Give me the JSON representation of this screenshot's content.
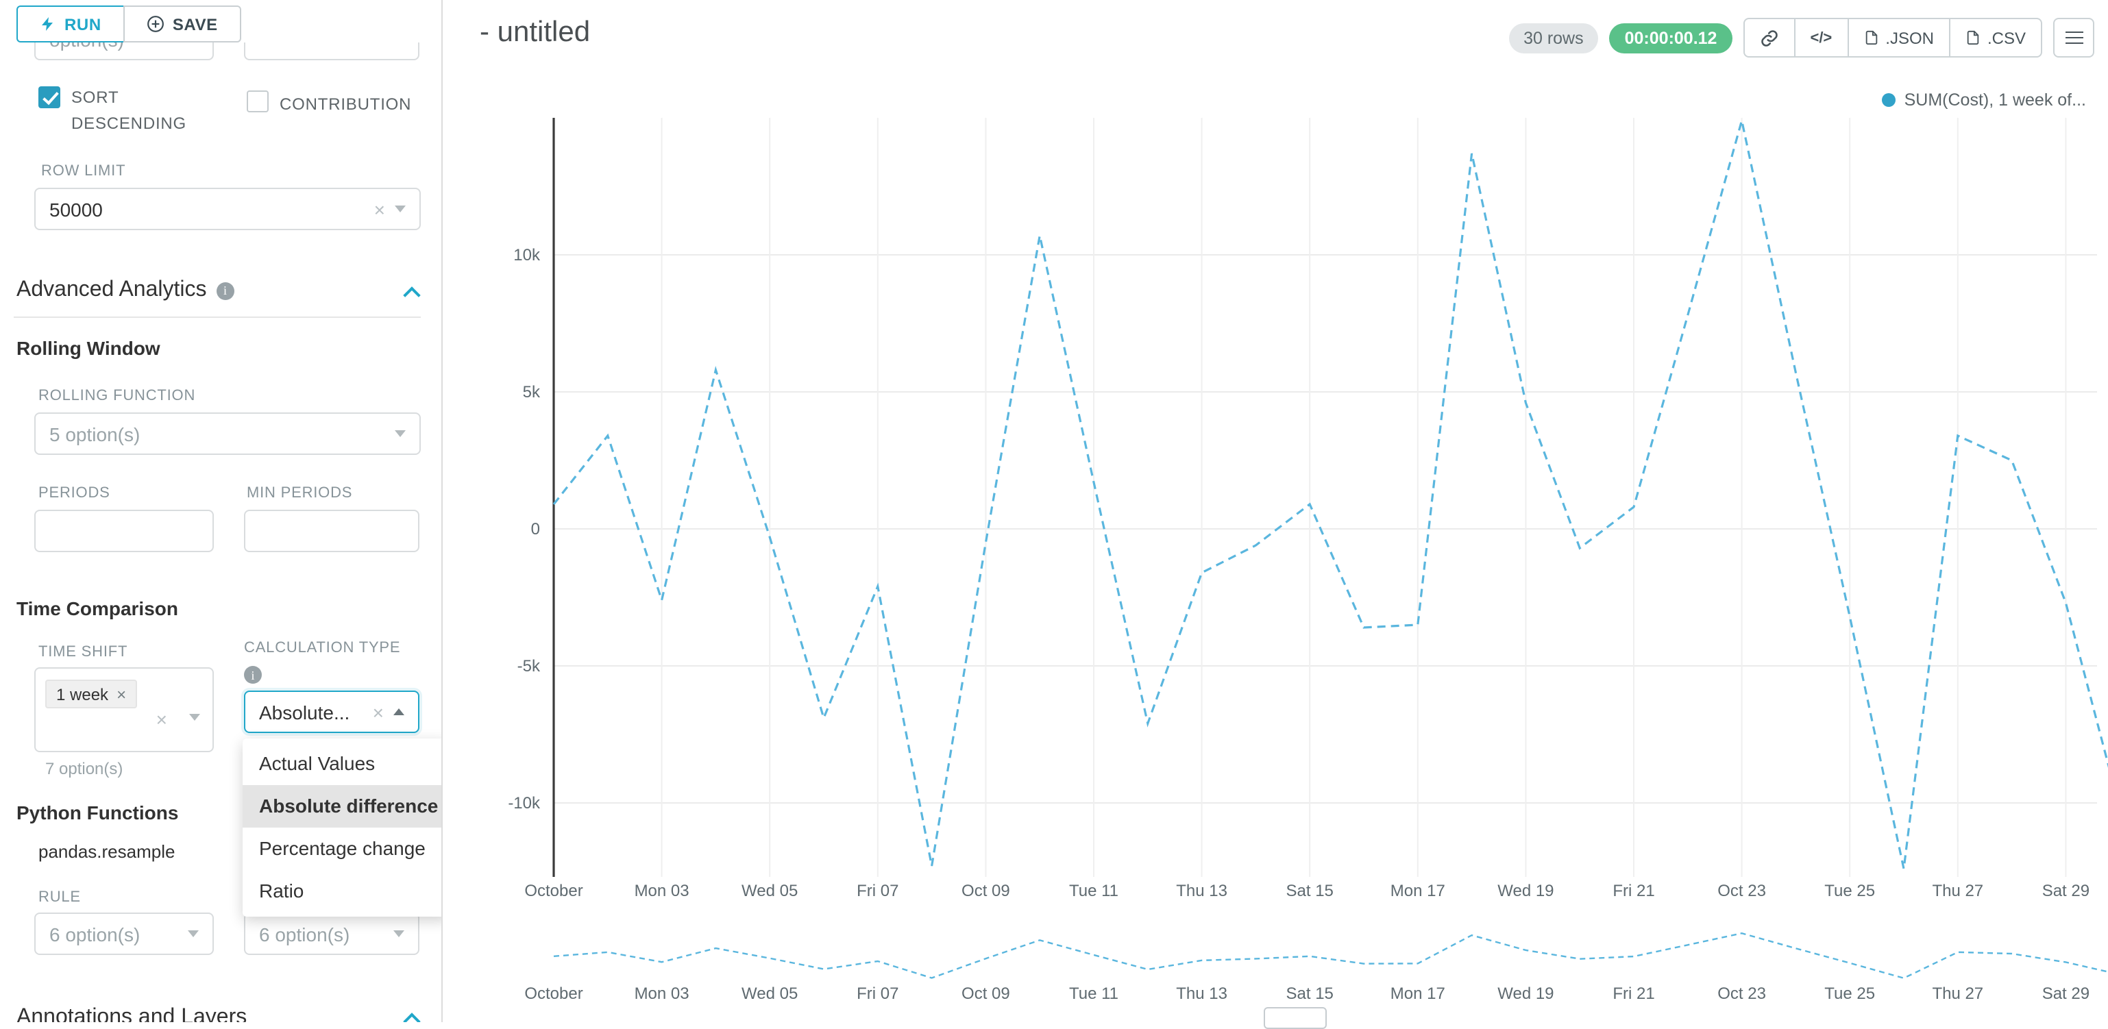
{
  "left_panel": {
    "run_label": "RUN",
    "save_label": "SAVE",
    "clipped_select_value": "option(s)",
    "sort_descending_label": "SORT DESCENDING",
    "sort_descending_checked": true,
    "contribution_label": "CONTRIBUTION",
    "contribution_checked": false,
    "row_limit_label": "ROW LIMIT",
    "row_limit_value": "50000",
    "advanced_analytics_title": "Advanced Analytics",
    "rolling_window_title": "Rolling Window",
    "rolling_function_label": "ROLLING FUNCTION",
    "rolling_function_placeholder": "5 option(s)",
    "periods_label": "PERIODS",
    "min_periods_label": "MIN PERIODS",
    "time_comparison_title": "Time Comparison",
    "time_shift_label": "TIME SHIFT",
    "time_shift_tag": "1 week",
    "time_shift_hint": "7 option(s)",
    "calculation_type_label": "CALCULATION TYPE",
    "calculation_type_value": "Absolute...",
    "calculation_type_options": [
      "Actual Values",
      "Absolute difference",
      "Percentage change",
      "Ratio"
    ],
    "calculation_type_selected": "Absolute difference",
    "python_functions_title": "Python Functions",
    "python_function_name": "pandas.resample",
    "rule_label": "RULE",
    "rule_placeholder_1": "6 option(s)",
    "rule_placeholder_2": "6 option(s)",
    "annotations_title": "Annotations and Layers"
  },
  "header": {
    "title": "- untitled",
    "rows_badge": "30 rows",
    "timer_badge": "00:00:00.12",
    "code_icon_label": "</>",
    "json_label": ".JSON",
    "csv_label": ".CSV"
  },
  "colors": {
    "accent": "#20a7c9",
    "timer_green": "#5ac189",
    "line_blue": "#5ab6de"
  },
  "chart_data": {
    "type": "line",
    "line_style": "dashed",
    "color": "#5ab6de",
    "dot_color": "#31a2c9",
    "legend_label": "SUM(Cost), 1 week of...",
    "legend_position": "top-right",
    "grid": true,
    "has_mini_map": true,
    "x": [
      "Oct 01",
      "Oct 02",
      "Oct 03",
      "Oct 04",
      "Oct 05",
      "Oct 06",
      "Oct 07",
      "Oct 08",
      "Oct 09",
      "Oct 10",
      "Oct 11",
      "Oct 12",
      "Oct 13",
      "Oct 14",
      "Oct 15",
      "Oct 16",
      "Oct 17",
      "Oct 18",
      "Oct 19",
      "Oct 20",
      "Oct 21",
      "Oct 22",
      "Oct 23",
      "Oct 24",
      "Oct 25",
      "Oct 26",
      "Oct 27",
      "Oct 28",
      "Oct 29",
      "Oct 30"
    ],
    "series": [
      {
        "name": "SUM(Cost), 1 week offset",
        "values": [
          900,
          3400,
          -2600,
          5800,
          -300,
          -6900,
          -2100,
          -12300,
          -500,
          10700,
          1700,
          -7100,
          -1600,
          -600,
          900,
          -3600,
          -3500,
          13700,
          4600,
          -700,
          800,
          7800,
          14900,
          5700,
          -3200,
          -12400,
          3400,
          2500,
          -2700,
          -10200
        ]
      }
    ],
    "y_ticks": [
      10000,
      5000,
      0,
      -5000,
      -10000
    ],
    "y_tick_labels": [
      "10k",
      "5k",
      "0",
      "-5k",
      "-10k"
    ],
    "x_tick_labels": [
      "October",
      "Mon 03",
      "Wed 05",
      "Fri 07",
      "Oct 09",
      "Tue 11",
      "Thu 13",
      "Sat 15",
      "Mon 17",
      "Wed 19",
      "Fri 21",
      "Oct 23",
      "Tue 25",
      "Thu 27",
      "Sat 29"
    ],
    "x_tick_positions": [
      0,
      2,
      4,
      6,
      8,
      10,
      12,
      14,
      16,
      18,
      20,
      22,
      24,
      26,
      28
    ],
    "ylim": [
      -13000,
      15000
    ]
  }
}
